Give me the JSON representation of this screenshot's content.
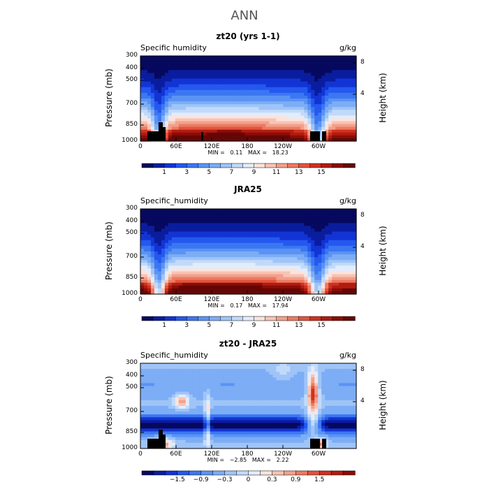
{
  "figure": {
    "title": "ANN",
    "colors": {
      "land": "#000000",
      "frame": "#000000"
    }
  },
  "chart_data": [
    {
      "type": "heatmap",
      "title": "zt20 (yrs 1-1)",
      "variable_label": "Specific humidity",
      "units": "g/kg",
      "xlabel": "",
      "ylabel": "Pressure (mb)",
      "y2label": "Height (km)",
      "x_ticks": [
        "0",
        "60E",
        "120E",
        "180",
        "120W",
        "60W"
      ],
      "y_ticks": [
        "300",
        "400",
        "500",
        "700",
        "850",
        "1000"
      ],
      "y2_ticks": [
        "8",
        "4"
      ],
      "stats": {
        "min_label": "MIN =",
        "min": "0.11",
        "max_label": "MAX =",
        "max": "18.23"
      },
      "colorbar_labels": [
        "1",
        "3",
        "5",
        "7",
        "9",
        "11",
        "13",
        "15"
      ],
      "colorbar_colors": [
        "#06095e",
        "#0a1d9e",
        "#1234d4",
        "#2458ef",
        "#3c77f2",
        "#5a93f4",
        "#7cadf5",
        "#9fc4f7",
        "#c2dafa",
        "#e3ecfb",
        "#fbe3dc",
        "#f8c3b4",
        "#f3a08a",
        "#ec7a62",
        "#e2533d",
        "#d0311f",
        "#b01c10",
        "#8a0d08",
        "#650606"
      ],
      "colorbar_range": [
        0,
        17
      ],
      "field": "humidity",
      "has_land": true
    },
    {
      "type": "heatmap",
      "title": "JRA25",
      "variable_label": "Specific_humidity",
      "units": "g/kg",
      "xlabel": "",
      "ylabel": "Pressure (mb)",
      "y2label": "Height (km)",
      "x_ticks": [
        "0",
        "60E",
        "120E",
        "180",
        "120W",
        "60W"
      ],
      "y_ticks": [
        "300",
        "400",
        "500",
        "700",
        "850",
        "1000"
      ],
      "y2_ticks": [
        "8",
        "4"
      ],
      "stats": {
        "min_label": "MIN =",
        "min": "0.17",
        "max_label": "MAX =",
        "max": "17.94"
      },
      "colorbar_labels": [
        "1",
        "3",
        "5",
        "7",
        "9",
        "11",
        "13",
        "15"
      ],
      "colorbar_colors": [
        "#06095e",
        "#0a1d9e",
        "#1234d4",
        "#2458ef",
        "#3c77f2",
        "#5a93f4",
        "#7cadf5",
        "#9fc4f7",
        "#c2dafa",
        "#e3ecfb",
        "#fbe3dc",
        "#f8c3b4",
        "#f3a08a",
        "#ec7a62",
        "#e2533d",
        "#d0311f",
        "#b01c10",
        "#8a0d08",
        "#650606"
      ],
      "colorbar_range": [
        0,
        17
      ],
      "field": "humidity",
      "has_land": false
    },
    {
      "type": "heatmap",
      "title": "zt20 - JRA25",
      "variable_label": "Specific_humidity",
      "units": "g/kg",
      "xlabel": "",
      "ylabel": "Pressure (mb)",
      "y2label": "Height (km)",
      "x_ticks": [
        "0",
        "60E",
        "120E",
        "180",
        "120W",
        "60W"
      ],
      "y_ticks": [
        "300",
        "400",
        "500",
        "700",
        "850",
        "1000"
      ],
      "y2_ticks": [
        "8",
        "4"
      ],
      "stats": {
        "min_label": "MIN =",
        "min": "−2.85",
        "max_label": "MAX =",
        "max": "2.22"
      },
      "colorbar_labels": [
        "−1.5",
        "−0.9",
        "−0.3",
        "0",
        "0.3",
        "0.9",
        "1.5"
      ],
      "colorbar_colors": [
        "#06095e",
        "#0a1d9e",
        "#1234d4",
        "#2458ef",
        "#3c77f2",
        "#5a93f4",
        "#7cadf5",
        "#9fc4f7",
        "#c2dafa",
        "#e3ecfb",
        "#fbe3dc",
        "#f8c3b4",
        "#f3a08a",
        "#ec7a62",
        "#e2533d",
        "#d0311f",
        "#b01c10",
        "#8a0d08"
      ],
      "colorbar_range": [
        -2.1,
        2.1
      ],
      "field": "difference",
      "has_land": true
    }
  ]
}
